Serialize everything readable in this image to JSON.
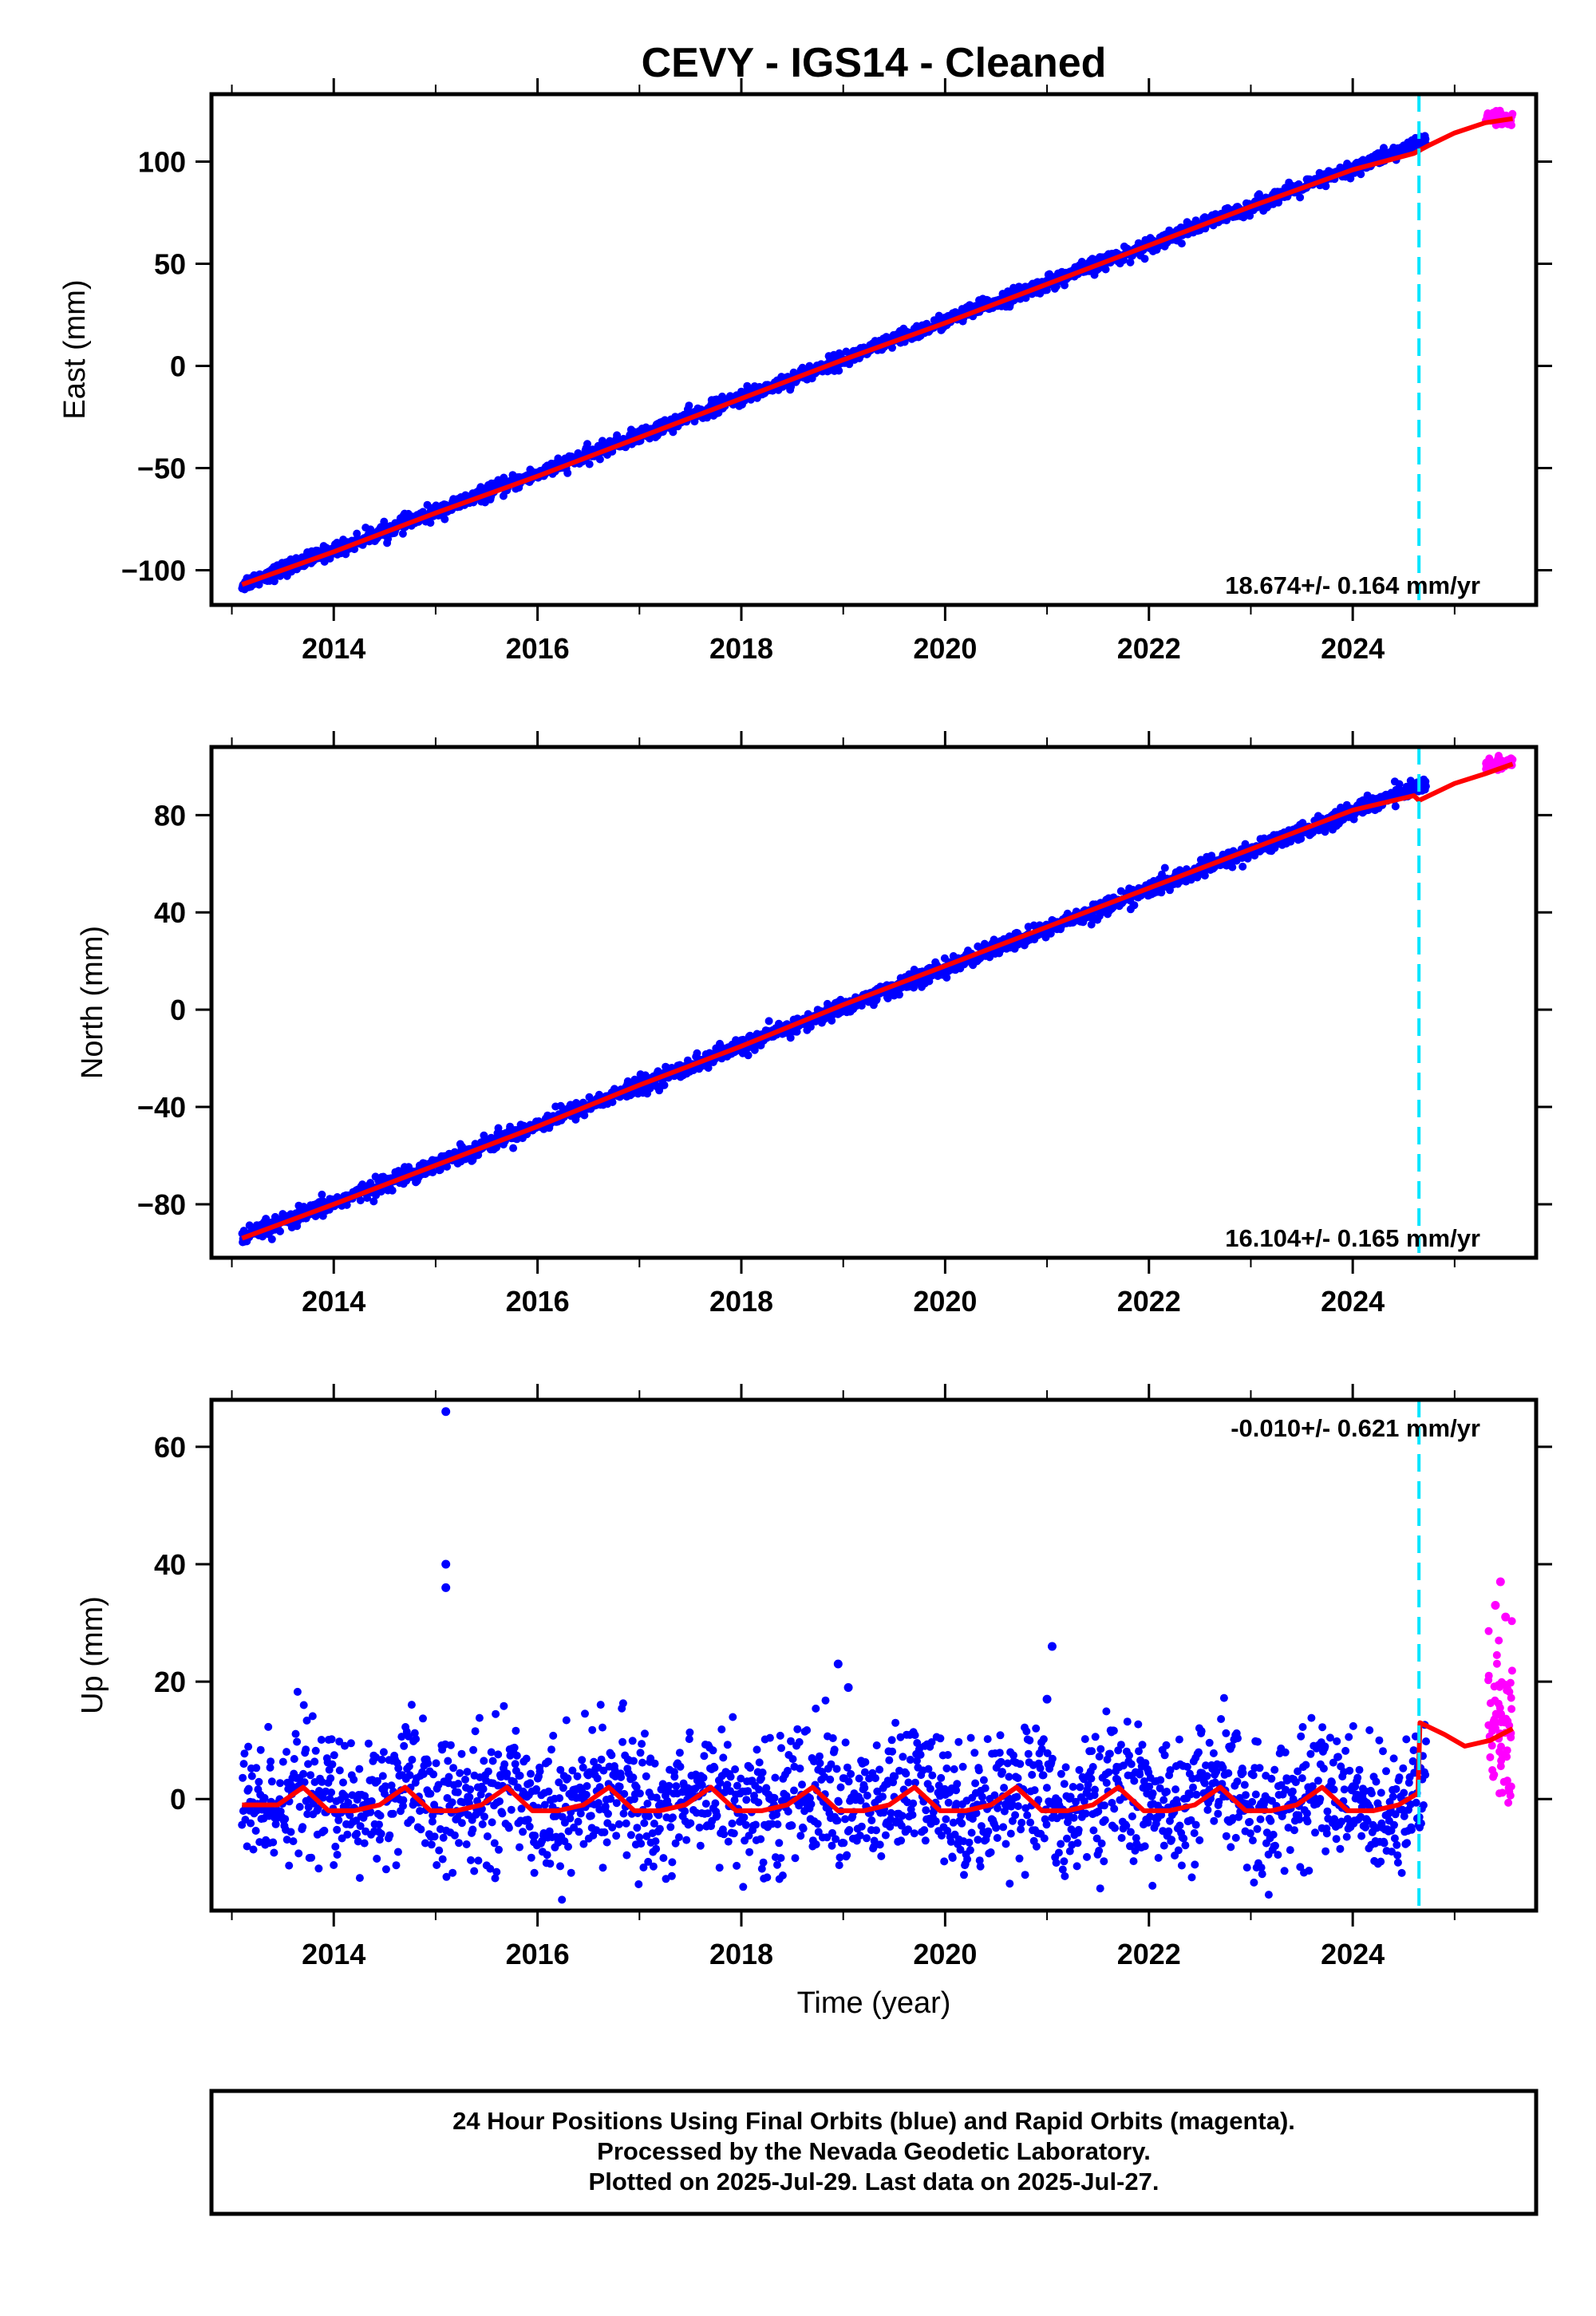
{
  "title": "CEVY  - IGS14 - Cleaned",
  "colors": {
    "final": "#0000ff",
    "rapid": "#ff00ff",
    "model": "#ff0000",
    "break_line": "#00e5ff",
    "frame": "#000000"
  },
  "chart_data": [
    {
      "type": "scatter",
      "component": "east",
      "ylabel": "East (mm)",
      "xlabel": "",
      "xlim": [
        2012.8,
        2025.8
      ],
      "ylim": [
        -117,
        133
      ],
      "xticks": [
        2014,
        2016,
        2018,
        2020,
        2022,
        2024
      ],
      "xtick_labels": [
        "2014",
        "2016",
        "2018",
        "2020",
        "2022",
        "2024"
      ],
      "yticks": [
        -100,
        -50,
        0,
        50,
        100
      ],
      "ytick_labels": [
        "−100",
        "−50",
        "0",
        "50",
        "100"
      ],
      "rate_label": "18.674+/- 0.164 mm/yr",
      "rate_position": "bottom-right",
      "break_epoch": 2024.65,
      "trend": {
        "t0": 2013.1,
        "y0": -107,
        "rate": 18.674
      },
      "scatter_sd": 1.8,
      "final_span": [
        2013.1,
        2024.72
      ],
      "rapid_span": [
        2025.3,
        2025.57
      ],
      "rapid_mean": 121,
      "rapid_sd": 1.8,
      "model_curve": {
        "x": [
          2013.1,
          2014.0,
          2015.0,
          2016.0,
          2017.0,
          2018.0,
          2019.0,
          2020.0,
          2021.0,
          2022.0,
          2023.0,
          2024.0,
          2024.6,
          2024.75,
          2025.0,
          2025.3,
          2025.57
        ],
        "y": [
          -107,
          -91,
          -72,
          -54,
          -35,
          -16,
          3,
          21,
          40,
          59,
          78,
          96,
          104,
          108,
          114,
          119,
          121
        ]
      }
    },
    {
      "type": "scatter",
      "component": "north",
      "ylabel": "North (mm)",
      "xlabel": "",
      "xlim": [
        2012.8,
        2025.8
      ],
      "ylim": [
        -102,
        108
      ],
      "xticks": [
        2014,
        2016,
        2018,
        2020,
        2022,
        2024
      ],
      "xtick_labels": [
        "2014",
        "2016",
        "2018",
        "2020",
        "2022",
        "2024"
      ],
      "yticks": [
        -80,
        -40,
        0,
        40,
        80
      ],
      "ytick_labels": [
        "−80",
        "−40",
        "0",
        "40",
        "80"
      ],
      "rate_label": "16.104+/- 0.165 mm/yr",
      "rate_position": "bottom-right",
      "break_epoch": 2024.65,
      "trend": {
        "t0": 2013.1,
        "y0": -94,
        "rate": 16.104
      },
      "scatter_sd": 1.7,
      "final_span": [
        2013.1,
        2024.72
      ],
      "rapid_span": [
        2025.3,
        2025.57
      ],
      "rapid_mean": 101,
      "rapid_sd": 1.5,
      "model_curve": {
        "x": [
          2013.1,
          2014.0,
          2015.0,
          2016.0,
          2017.0,
          2018.0,
          2019.0,
          2020.0,
          2021.0,
          2022.0,
          2023.0,
          2024.0,
          2024.6,
          2024.65,
          2025.0,
          2025.3,
          2025.57
        ],
        "y": [
          -94,
          -80,
          -64,
          -48,
          -31,
          -15,
          2,
          18,
          34,
          50,
          66,
          82,
          88,
          86,
          93,
          97,
          101
        ]
      }
    },
    {
      "type": "scatter",
      "component": "up",
      "ylabel": "Up (mm)",
      "xlabel": "Time (year)",
      "xlim": [
        2012.8,
        2025.8
      ],
      "ylim": [
        -19,
        68
      ],
      "xticks": [
        2014,
        2016,
        2018,
        2020,
        2022,
        2024
      ],
      "xtick_labels": [
        "2014",
        "2016",
        "2018",
        "2020",
        "2022",
        "2024"
      ],
      "yticks": [
        0,
        20,
        40,
        60
      ],
      "ytick_labels": [
        "0",
        "20",
        "40",
        "60"
      ],
      "rate_label": "-0.010+/- 0.621 mm/yr",
      "rate_position": "top-right",
      "break_epoch": 2024.65,
      "trend": {
        "t0": 2013.1,
        "y0": 0,
        "rate": -0.01
      },
      "seasonal_amp": 2.0,
      "scatter_sd": 5.5,
      "final_span": [
        2013.1,
        2024.72
      ],
      "rapid_span": [
        2025.33,
        2025.57
      ],
      "rapid_mean": 12,
      "rapid_sd": 7,
      "outliers": [
        {
          "x": 2015.1,
          "y": 66
        },
        {
          "x": 2015.1,
          "y": 40
        },
        {
          "x": 2015.1,
          "y": 36
        },
        {
          "x": 2018.95,
          "y": 23
        },
        {
          "x": 2019.05,
          "y": 19
        },
        {
          "x": 2021.05,
          "y": 26
        },
        {
          "x": 2021.0,
          "y": 17
        },
        {
          "x": 2025.45,
          "y": 37
        },
        {
          "x": 2025.4,
          "y": 33
        },
        {
          "x": 2025.5,
          "y": 31
        }
      ],
      "model_curve": {
        "x": [
          2013.1,
          2013.45,
          2013.7,
          2013.95,
          2014.2,
          2014.45,
          2014.7,
          2014.95,
          2015.2,
          2015.45,
          2015.7,
          2015.95,
          2016.2,
          2016.45,
          2016.7,
          2016.95,
          2017.2,
          2017.45,
          2017.7,
          2017.95,
          2018.2,
          2018.45,
          2018.7,
          2018.95,
          2019.2,
          2019.45,
          2019.7,
          2019.95,
          2020.2,
          2020.45,
          2020.7,
          2020.95,
          2021.2,
          2021.45,
          2021.7,
          2021.95,
          2022.2,
          2022.45,
          2022.7,
          2022.95,
          2023.2,
          2023.45,
          2023.7,
          2023.95,
          2024.2,
          2024.45,
          2024.64,
          2024.66,
          2024.9,
          2025.1,
          2025.35,
          2025.57
        ],
        "y": [
          -1,
          -1,
          2,
          -2,
          -2,
          -1,
          2,
          -2,
          -2,
          -1,
          2,
          -2,
          -2,
          -1,
          2,
          -2,
          -2,
          -1,
          2,
          -2,
          -2,
          -1,
          2,
          -2,
          -2,
          -1,
          2,
          -2,
          -2,
          -1,
          2,
          -2,
          -2,
          -1,
          2,
          -2,
          -2,
          -1,
          2,
          -2,
          -2,
          -1,
          2,
          -2,
          -2,
          -1,
          1,
          13,
          11,
          9,
          10,
          12
        ]
      }
    }
  ],
  "footer": {
    "line1": "24 Hour Positions Using Final Orbits (blue) and Rapid Orbits (magenta).",
    "line2": "Processed by the Nevada Geodetic Laboratory.",
    "line3": "Plotted on 2025-Jul-29. Last data on 2025-Jul-27."
  }
}
